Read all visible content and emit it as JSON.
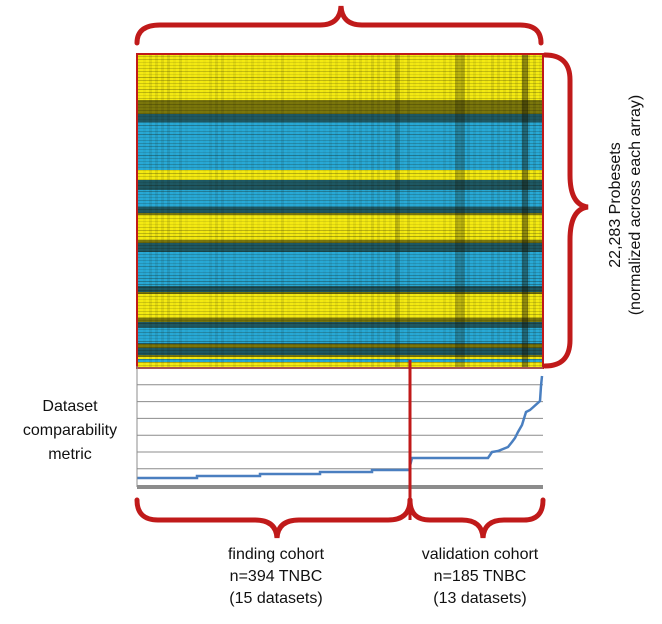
{
  "heatmap": {
    "row_label_line1": "22,283 Probesets",
    "row_label_line2": "(normalized across each array)",
    "colors": {
      "high": "#f4ea12",
      "low": "#28a9d6",
      "mid": "#151505",
      "frame": "#c01a1a"
    }
  },
  "metric_panel": {
    "label_line1": "Dataset",
    "label_line2": "comparability",
    "label_line3": "metric",
    "line_color": "#4a7fc0",
    "grid_color": "#8c8c8c"
  },
  "cohorts": {
    "finding": {
      "title": "finding cohort",
      "count": "n=394 TNBC",
      "datasets": "(15 datasets)"
    },
    "validation": {
      "title": "validation cohort",
      "count": "n=185 TNBC",
      "datasets": "(13 datasets)"
    }
  },
  "brace_color": "#c01a1a"
}
